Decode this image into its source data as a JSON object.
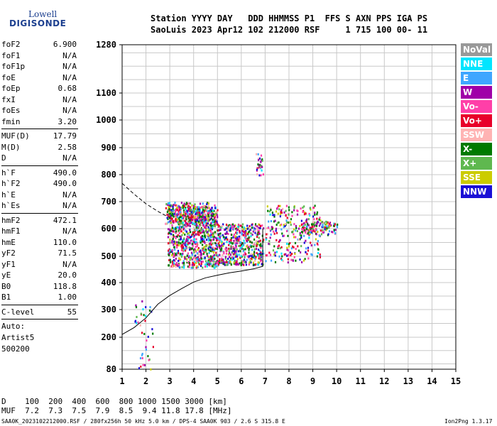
{
  "logo": {
    "line1": "Lowell",
    "line2": "DIGISONDE"
  },
  "header": {
    "line1": "Station YYYY DAY   DDD HHMMSS P1  FFS S AXN PPS IGA PS",
    "line2": "SaoLuis 2023 Apr12 102 212000 RSF     1 715 100 00- 11"
  },
  "params": {
    "group1": [
      {
        "k": "foF2",
        "v": "6.900"
      },
      {
        "k": "foF1",
        "v": "N/A"
      },
      {
        "k": "foF1p",
        "v": "N/A"
      },
      {
        "k": "foE",
        "v": "N/A"
      },
      {
        "k": "foEp",
        "v": "0.68"
      },
      {
        "k": "fxI",
        "v": "N/A"
      },
      {
        "k": "foEs",
        "v": "N/A"
      },
      {
        "k": "fmin",
        "v": "3.20"
      }
    ],
    "group2": [
      {
        "k": "MUF(D)",
        "v": "17.79"
      },
      {
        "k": "M(D)",
        "v": "2.58"
      },
      {
        "k": "D",
        "v": "N/A"
      }
    ],
    "group3": [
      {
        "k": "h`F",
        "v": "490.0"
      },
      {
        "k": "h`F2",
        "v": "490.0"
      },
      {
        "k": "h`E",
        "v": "N/A"
      },
      {
        "k": "h`Es",
        "v": "N/A"
      }
    ],
    "group4": [
      {
        "k": "hmF2",
        "v": "472.1"
      },
      {
        "k": "hmF1",
        "v": "N/A"
      },
      {
        "k": "hmE",
        "v": "110.0"
      },
      {
        "k": "yF2",
        "v": "71.5"
      },
      {
        "k": "yF1",
        "v": "N/A"
      },
      {
        "k": "yE",
        "v": "20.0"
      },
      {
        "k": "B0",
        "v": "118.8"
      },
      {
        "k": "B1",
        "v": "1.00"
      }
    ],
    "clevel": {
      "k": "C-level",
      "v": "55"
    },
    "auto": [
      "Auto:",
      "Artist5",
      "500200"
    ]
  },
  "legend": [
    {
      "label": "NoVal",
      "color": "#999999"
    },
    {
      "label": "NNE",
      "color": "#00e5ff"
    },
    {
      "label": "E",
      "color": "#3fa6ff"
    },
    {
      "label": "W",
      "color": "#a000a8"
    },
    {
      "label": "Vo-",
      "color": "#ff3fa8"
    },
    {
      "label": "Vo+",
      "color": "#e8002a"
    },
    {
      "label": "SSW",
      "color": "#ffb3b3"
    },
    {
      "label": "X-",
      "color": "#007a00"
    },
    {
      "label": "X+",
      "color": "#5fb84f"
    },
    {
      "label": "SSE",
      "color": "#cccc00"
    },
    {
      "label": "NNW",
      "color": "#1a0fd6"
    }
  ],
  "chart_data": {
    "type": "scatter",
    "xlim": [
      1,
      15
    ],
    "ylim": [
      80,
      1280
    ],
    "x_ticks": [
      "1",
      "2",
      "3",
      "4",
      "5",
      "6",
      "7",
      "8",
      "9",
      "10",
      "11",
      "12",
      "13",
      "14",
      "15"
    ],
    "y_ticks": [
      "80",
      "200",
      "300",
      "400",
      "500",
      "600",
      "700",
      "800",
      "900",
      "1000",
      "1100",
      "1280"
    ],
    "grid": true,
    "profile_solid": [
      [
        1,
        210
      ],
      [
        1.5,
        235
      ],
      [
        2,
        270
      ],
      [
        2.5,
        320
      ],
      [
        3,
        352
      ],
      [
        3.5,
        378
      ],
      [
        4,
        402
      ],
      [
        4.5,
        418
      ],
      [
        5,
        428
      ],
      [
        5.5,
        437
      ],
      [
        6,
        444
      ],
      [
        6.5,
        452
      ],
      [
        6.9,
        462
      ],
      [
        6.9,
        600
      ]
    ],
    "profile_dashed": [
      [
        1,
        768
      ],
      [
        1.5,
        728
      ],
      [
        2,
        692
      ],
      [
        2.5,
        664
      ],
      [
        3,
        640
      ]
    ],
    "trace_clusters": [
      {
        "x0": 2.9,
        "x1": 5.0,
        "y0": 460,
        "y1": 690,
        "n": 900
      },
      {
        "x0": 5.0,
        "x1": 6.9,
        "y0": 470,
        "y1": 620,
        "n": 500
      },
      {
        "x0": 2.8,
        "x1": 4.6,
        "y0": 620,
        "y1": 700,
        "n": 220
      },
      {
        "x0": 7.0,
        "x1": 9.3,
        "y0": 480,
        "y1": 690,
        "n": 260
      },
      {
        "x0": 8.5,
        "x1": 10.0,
        "y0": 580,
        "y1": 630,
        "n": 120
      },
      {
        "x0": 6.6,
        "x1": 6.9,
        "y0": 800,
        "y1": 880,
        "n": 30
      },
      {
        "x0": 1.5,
        "x1": 2.3,
        "y0": 80,
        "y1": 350,
        "n": 40
      }
    ]
  },
  "muf_table": {
    "line1": "D    100  200  400  600  800 1000 1500 3000 [km]",
    "line2": "MUF  7.2  7.3  7.5  7.9  8.5  9.4 11.8 17.8 [MHz]"
  },
  "footer": {
    "left": "SAA0K_2023102212000.RSF / 280fx256h 50 kHz 5.0 km / DPS-4 SAA0K 903 / 2.6 S 315.8 E",
    "right": "Ion2Png 1.3.17"
  }
}
